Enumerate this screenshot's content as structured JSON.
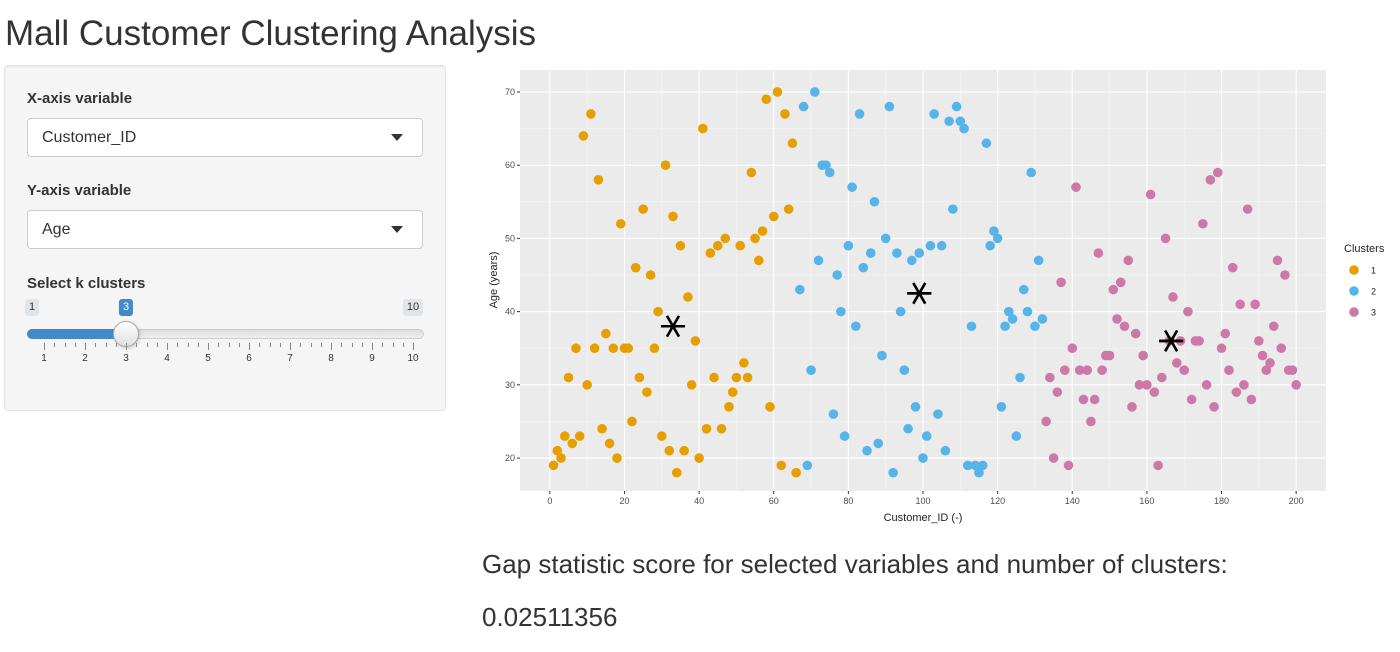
{
  "page": {
    "title": "Mall Customer Clustering Analysis"
  },
  "sidebar": {
    "x_select": {
      "label": "X-axis variable",
      "value": "Customer_ID"
    },
    "y_select": {
      "label": "Y-axis variable",
      "value": "Age"
    },
    "k_slider": {
      "label": "Select k clusters",
      "min": 1,
      "max": 10,
      "value": 3,
      "min_label": "1",
      "max_label": "10",
      "value_label": "3",
      "ticks": [
        "1",
        "2",
        "3",
        "4",
        "5",
        "6",
        "7",
        "8",
        "9",
        "10"
      ]
    }
  },
  "result": {
    "gap_label": "Gap statistic score for selected variables and number of clusters:",
    "gap_value": "0.02511356"
  },
  "chart_data": {
    "type": "scatter",
    "xlabel": "Customer_ID (-)",
    "ylabel": "Age (years)",
    "xlim": [
      -8,
      208
    ],
    "ylim": [
      15.5,
      73
    ],
    "xticks": [
      0,
      20,
      40,
      60,
      80,
      100,
      120,
      140,
      160,
      180,
      200
    ],
    "yticks": [
      20,
      30,
      40,
      50,
      60,
      70
    ],
    "grid": true,
    "legend": {
      "title": "Clusters",
      "position": "right",
      "entries": [
        "1",
        "2",
        "3"
      ]
    },
    "colors": {
      "1": "#E69F00",
      "2": "#56B4E9",
      "3": "#CC79A7",
      "panel": "#EBEBEB",
      "grid": "#FFFFFF",
      "centroid": "#000000"
    },
    "series": [
      {
        "name": "1",
        "points": [
          [
            1,
            19
          ],
          [
            2,
            21
          ],
          [
            3,
            20
          ],
          [
            4,
            23
          ],
          [
            5,
            31
          ],
          [
            6,
            22
          ],
          [
            7,
            35
          ],
          [
            8,
            23
          ],
          [
            9,
            64
          ],
          [
            10,
            30
          ],
          [
            11,
            67
          ],
          [
            12,
            35
          ],
          [
            13,
            58
          ],
          [
            14,
            24
          ],
          [
            15,
            37
          ],
          [
            16,
            22
          ],
          [
            17,
            35
          ],
          [
            18,
            20
          ],
          [
            19,
            52
          ],
          [
            20,
            35
          ],
          [
            21,
            35
          ],
          [
            22,
            25
          ],
          [
            23,
            46
          ],
          [
            24,
            31
          ],
          [
            25,
            54
          ],
          [
            26,
            29
          ],
          [
            27,
            45
          ],
          [
            28,
            35
          ],
          [
            29,
            40
          ],
          [
            30,
            23
          ],
          [
            31,
            60
          ],
          [
            32,
            21
          ],
          [
            33,
            53
          ],
          [
            34,
            18
          ],
          [
            35,
            49
          ],
          [
            36,
            21
          ],
          [
            37,
            42
          ],
          [
            38,
            30
          ],
          [
            39,
            36
          ],
          [
            40,
            20
          ],
          [
            41,
            65
          ],
          [
            42,
            24
          ],
          [
            43,
            48
          ],
          [
            44,
            31
          ],
          [
            45,
            49
          ],
          [
            46,
            24
          ],
          [
            47,
            50
          ],
          [
            48,
            27
          ],
          [
            49,
            29
          ],
          [
            50,
            31
          ],
          [
            51,
            49
          ],
          [
            52,
            33
          ],
          [
            53,
            31
          ],
          [
            54,
            59
          ],
          [
            55,
            50
          ],
          [
            56,
            47
          ],
          [
            57,
            51
          ],
          [
            58,
            69
          ],
          [
            59,
            27
          ],
          [
            60,
            53
          ],
          [
            61,
            70
          ],
          [
            62,
            19
          ],
          [
            63,
            67
          ],
          [
            64,
            54
          ],
          [
            65,
            63
          ],
          [
            66,
            18
          ]
        ]
      },
      {
        "name": "2",
        "points": [
          [
            67,
            43
          ],
          [
            68,
            68
          ],
          [
            69,
            19
          ],
          [
            70,
            32
          ],
          [
            71,
            70
          ],
          [
            72,
            47
          ],
          [
            73,
            60
          ],
          [
            74,
            60
          ],
          [
            75,
            59
          ],
          [
            76,
            26
          ],
          [
            77,
            45
          ],
          [
            78,
            40
          ],
          [
            79,
            23
          ],
          [
            80,
            49
          ],
          [
            81,
            57
          ],
          [
            82,
            38
          ],
          [
            83,
            67
          ],
          [
            84,
            46
          ],
          [
            85,
            21
          ],
          [
            86,
            48
          ],
          [
            87,
            55
          ],
          [
            88,
            22
          ],
          [
            89,
            34
          ],
          [
            90,
            50
          ],
          [
            91,
            68
          ],
          [
            92,
            18
          ],
          [
            93,
            48
          ],
          [
            94,
            40
          ],
          [
            95,
            32
          ],
          [
            96,
            24
          ],
          [
            97,
            47
          ],
          [
            98,
            27
          ],
          [
            99,
            48
          ],
          [
            100,
            20
          ],
          [
            101,
            23
          ],
          [
            102,
            49
          ],
          [
            103,
            67
          ],
          [
            104,
            26
          ],
          [
            105,
            49
          ],
          [
            106,
            21
          ],
          [
            107,
            66
          ],
          [
            108,
            54
          ],
          [
            109,
            68
          ],
          [
            110,
            66
          ],
          [
            111,
            65
          ],
          [
            112,
            19
          ],
          [
            113,
            38
          ],
          [
            114,
            19
          ],
          [
            115,
            18
          ],
          [
            116,
            19
          ],
          [
            117,
            63
          ],
          [
            118,
            49
          ],
          [
            119,
            51
          ],
          [
            120,
            50
          ],
          [
            121,
            27
          ],
          [
            122,
            38
          ],
          [
            123,
            40
          ],
          [
            124,
            39
          ],
          [
            125,
            23
          ],
          [
            126,
            31
          ],
          [
            127,
            43
          ],
          [
            128,
            40
          ],
          [
            129,
            59
          ],
          [
            130,
            38
          ],
          [
            131,
            47
          ],
          [
            132,
            39
          ]
        ]
      },
      {
        "name": "3",
        "points": [
          [
            133,
            25
          ],
          [
            134,
            31
          ],
          [
            135,
            20
          ],
          [
            136,
            29
          ],
          [
            137,
            44
          ],
          [
            138,
            32
          ],
          [
            139,
            19
          ],
          [
            140,
            35
          ],
          [
            141,
            57
          ],
          [
            142,
            32
          ],
          [
            143,
            28
          ],
          [
            144,
            32
          ],
          [
            145,
            25
          ],
          [
            146,
            28
          ],
          [
            147,
            48
          ],
          [
            148,
            32
          ],
          [
            149,
            34
          ],
          [
            150,
            34
          ],
          [
            151,
            43
          ],
          [
            152,
            39
          ],
          [
            153,
            44
          ],
          [
            154,
            38
          ],
          [
            155,
            47
          ],
          [
            156,
            27
          ],
          [
            157,
            37
          ],
          [
            158,
            30
          ],
          [
            159,
            34
          ],
          [
            160,
            30
          ],
          [
            161,
            56
          ],
          [
            162,
            29
          ],
          [
            163,
            19
          ],
          [
            164,
            31
          ],
          [
            165,
            50
          ],
          [
            166,
            36
          ],
          [
            167,
            42
          ],
          [
            168,
            33
          ],
          [
            169,
            36
          ],
          [
            170,
            32
          ],
          [
            171,
            40
          ],
          [
            172,
            28
          ],
          [
            173,
            36
          ],
          [
            174,
            36
          ],
          [
            175,
            52
          ],
          [
            176,
            30
          ],
          [
            177,
            58
          ],
          [
            178,
            27
          ],
          [
            179,
            59
          ],
          [
            180,
            35
          ],
          [
            181,
            37
          ],
          [
            182,
            32
          ],
          [
            183,
            46
          ],
          [
            184,
            29
          ],
          [
            185,
            41
          ],
          [
            186,
            30
          ],
          [
            187,
            54
          ],
          [
            188,
            28
          ],
          [
            189,
            41
          ],
          [
            190,
            36
          ],
          [
            191,
            34
          ],
          [
            192,
            32
          ],
          [
            193,
            33
          ],
          [
            194,
            38
          ],
          [
            195,
            47
          ],
          [
            196,
            35
          ],
          [
            197,
            45
          ],
          [
            198,
            32
          ],
          [
            199,
            32
          ],
          [
            200,
            30
          ]
        ]
      }
    ],
    "centroids": [
      {
        "cluster": "1",
        "x": 33,
        "y": 38
      },
      {
        "cluster": "2",
        "x": 99,
        "y": 42.5
      },
      {
        "cluster": "3",
        "x": 166.5,
        "y": 36
      }
    ]
  }
}
